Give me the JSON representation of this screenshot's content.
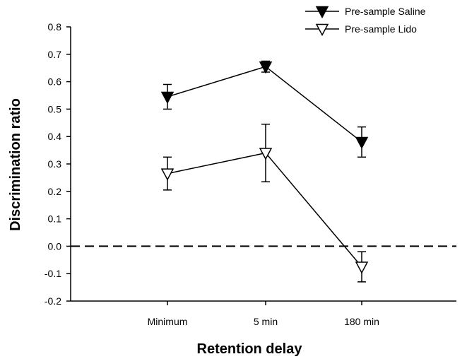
{
  "chart_data": {
    "type": "line",
    "categories": [
      "Minimum",
      "5 min",
      "180 min"
    ],
    "xlabel": "Retention delay",
    "ylabel": "Discrimination ratio",
    "ylim": [
      -0.2,
      0.8
    ],
    "yticks": [
      "-0.2",
      "-0.1",
      "0.0",
      "0.1",
      "0.2",
      "0.3",
      "0.4",
      "0.5",
      "0.6",
      "0.7",
      "0.8"
    ],
    "reference_line": {
      "y": 0.0,
      "style": "dashed"
    },
    "legend_position": "top-right",
    "series": [
      {
        "name": "Pre-sample Saline",
        "marker": "filled-down-triangle",
        "color": "#000000",
        "values": [
          0.545,
          0.655,
          0.38
        ],
        "error": [
          0.045,
          0.02,
          0.055
        ]
      },
      {
        "name": "Pre-sample Lido",
        "marker": "open-down-triangle",
        "color": "#000000",
        "values": [
          0.265,
          0.34,
          -0.075
        ],
        "error": [
          0.06,
          0.105,
          0.055
        ]
      }
    ]
  }
}
